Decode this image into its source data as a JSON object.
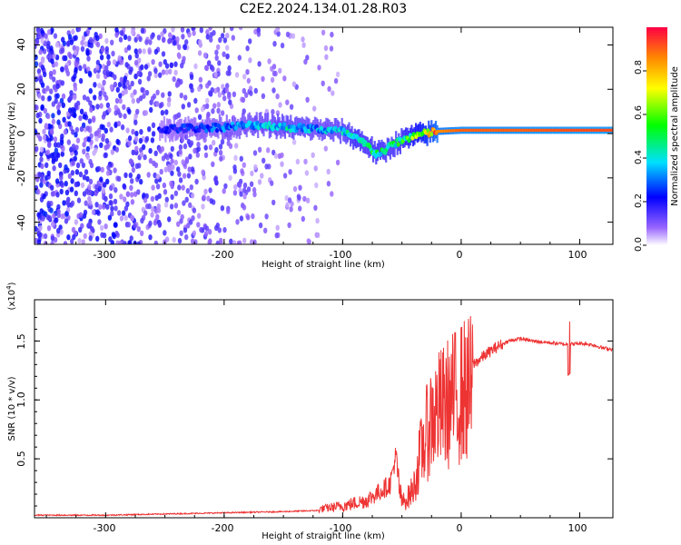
{
  "chart_data": [
    {
      "type": "heatmap",
      "title": "C2E2.2024.134.01.28.R03",
      "xlabel": "Height of straight line (km)",
      "ylabel": "Frequency (Hz)",
      "xlim": [
        -360,
        128
      ],
      "ylim": [
        -50,
        48
      ],
      "xticks": [
        "-300",
        "-200",
        "-100",
        "0",
        "100"
      ],
      "yticks": [
        "40",
        "20",
        "0",
        "-20",
        "-40"
      ],
      "colorbar": {
        "label": "Normalized spectral amplitude",
        "ticks": [
          "0.0",
          "0.2",
          "0.4",
          "0.6",
          "0.8"
        ],
        "range": [
          0,
          1
        ]
      },
      "ridge": {
        "x": [
          -250,
          -200,
          -170,
          -150,
          -120,
          -100,
          -90,
          -80,
          -72,
          -65,
          -58,
          -50,
          -40,
          -30,
          -20,
          0,
          50,
          100,
          128
        ],
        "frequency": [
          2,
          3,
          4,
          3,
          2,
          1,
          -2,
          -5,
          -9,
          -8,
          -5,
          -3,
          -1,
          0,
          1,
          1.5,
          1.5,
          1.5,
          1.5
        ],
        "amplitude": [
          0.2,
          0.3,
          0.35,
          0.4,
          0.35,
          0.4,
          0.5,
          0.45,
          0.5,
          0.45,
          0.45,
          0.5,
          0.6,
          0.7,
          0.85,
          0.9,
          0.9,
          0.92,
          0.92
        ]
      }
    },
    {
      "type": "line",
      "xlabel": "Height of straight line (km)",
      "ylabel": "SNR (10 * v/v)",
      "yscale_label": "(x10",
      "yscale_exp": "4",
      "xlim": [
        -360,
        128
      ],
      "ylim": [
        0,
        1.85
      ],
      "xticks": [
        "-300",
        "-200",
        "-100",
        "0",
        "100"
      ],
      "yticks": [
        "0.5",
        "1.0",
        "1.5"
      ],
      "series": [
        {
          "color": "#ee3333",
          "x": [
            -360,
            -300,
            -250,
            -200,
            -150,
            -120,
            -100,
            -80,
            -70,
            -60,
            -55,
            -50,
            -45,
            -40,
            -35,
            -30,
            -25,
            -20,
            -15,
            -10,
            -5,
            0,
            10,
            20,
            30,
            40,
            50,
            60,
            70,
            80,
            90,
            100,
            110,
            120,
            128
          ],
          "y": [
            0.02,
            0.02,
            0.03,
            0.04,
            0.05,
            0.06,
            0.08,
            0.12,
            0.18,
            0.25,
            0.5,
            0.15,
            0.2,
            0.3,
            0.6,
            0.8,
            1.0,
            1.05,
            1.1,
            1.15,
            1.2,
            1.25,
            1.3,
            1.38,
            1.45,
            1.5,
            1.52,
            1.5,
            1.49,
            1.48,
            1.47,
            1.48,
            1.47,
            1.44,
            1.43
          ]
        }
      ]
    }
  ]
}
